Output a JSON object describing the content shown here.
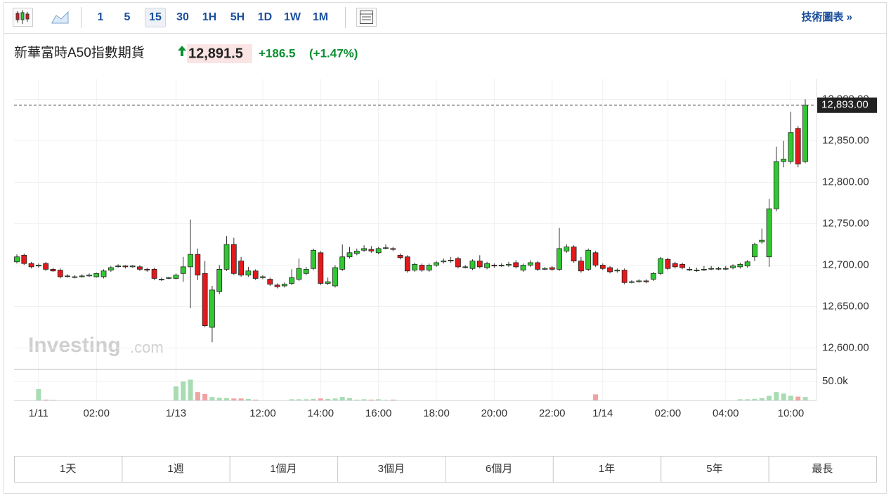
{
  "toolbar": {
    "intervals": [
      "1",
      "5",
      "15",
      "30",
      "1H",
      "5H",
      "1D",
      "1W",
      "1M"
    ],
    "link": "技術圖表 »"
  },
  "quote": {
    "name": "新華富時A50指數期貨",
    "price": "12,891.5",
    "change": "+186.5",
    "change_percent": "(+1.47%)"
  },
  "ranges": [
    "1天",
    "1週",
    "1個月",
    "3個月",
    "6個月",
    "1年",
    "5年",
    "最長"
  ],
  "chart_data": {
    "type": "candlestick",
    "watermark": [
      "Investing",
      ".com"
    ],
    "categories": [
      null,
      null,
      null,
      "1/11",
      null,
      null,
      null,
      null,
      null,
      null,
      null,
      "02:00",
      null,
      null,
      null,
      null,
      null,
      null,
      null,
      null,
      null,
      null,
      "1/13",
      null,
      null,
      null,
      null,
      null,
      null,
      null,
      null,
      null,
      null,
      null,
      "12:00",
      null,
      null,
      null,
      null,
      null,
      null,
      null,
      "14:00",
      null,
      null,
      null,
      null,
      null,
      null,
      null,
      "16:00",
      null,
      null,
      null,
      null,
      null,
      null,
      null,
      "18:00",
      null,
      null,
      null,
      null,
      null,
      null,
      null,
      "20:00",
      null,
      null,
      null,
      null,
      null,
      null,
      null,
      "22:00",
      null,
      null,
      null,
      null,
      null,
      null,
      "1/14",
      null,
      null,
      null,
      null,
      null,
      null,
      null,
      null,
      "02:00",
      null,
      null,
      null,
      null,
      null,
      null,
      null,
      "04:00",
      null,
      null,
      null,
      null,
      null,
      null,
      null,
      null,
      "10:00",
      null,
      null
    ],
    "open": [
      12704,
      12712,
      12702,
      12699,
      12702,
      12695,
      12694,
      12687,
      12686,
      12686,
      12687,
      12686,
      12686,
      12694,
      12699,
      12699,
      12698,
      12698,
      12695,
      12695,
      12683,
      12684,
      12684,
      12690,
      12698,
      12713,
      12690,
      12625,
      12668,
      12695,
      12725,
      12705,
      12688,
      12693,
      12685,
      12683,
      12676,
      12675,
      12678,
      12683,
      12690,
      12696,
      12715,
      12678,
      12675,
      12695,
      12710,
      12714,
      12718,
      12719,
      12715,
      12721,
      12720,
      12712,
      12710,
      12694,
      12700,
      12694,
      12700,
      12704,
      12705,
      12708,
      12698,
      12696,
      12705,
      12697,
      12700,
      12699,
      12700,
      12703,
      12694,
      12700,
      12703,
      12695,
      12697,
      12695,
      12717,
      12722,
      12705,
      12695,
      12715,
      12700,
      12697,
      12693,
      12694,
      12680,
      12680,
      12681,
      12683,
      12690,
      12707,
      12702,
      12701,
      12695,
      12694,
      12695,
      12696,
      12696,
      12696,
      12697,
      12698,
      12699,
      12710,
      12728,
      12710,
      12768,
      12825,
      12825,
      12865,
      12825
    ],
    "high": [
      12713,
      12714,
      12704,
      12702,
      12704,
      12697,
      12696,
      12689,
      12688,
      12689,
      12690,
      12691,
      12695,
      12699,
      12701,
      12700,
      12700,
      12700,
      12697,
      12697,
      12685,
      12686,
      12690,
      12710,
      12755,
      12720,
      12705,
      12675,
      12700,
      12735,
      12733,
      12710,
      12698,
      12695,
      12688,
      12685,
      12678,
      12679,
      12695,
      12708,
      12698,
      12720,
      12717,
      12685,
      12700,
      12725,
      12722,
      12720,
      12724,
      12723,
      12722,
      12725,
      12722,
      12714,
      12712,
      12703,
      12702,
      12702,
      12705,
      12708,
      12710,
      12710,
      12700,
      12707,
      12712,
      12704,
      12702,
      12702,
      12704,
      12706,
      12702,
      12706,
      12705,
      12698,
      12699,
      12745,
      12725,
      12724,
      12710,
      12720,
      12717,
      12702,
      12699,
      12696,
      12696,
      12682,
      12683,
      12683,
      12692,
      12710,
      12709,
      12704,
      12703,
      12698,
      12697,
      12699,
      12699,
      12698,
      12699,
      12701,
      12703,
      12706,
      12727,
      12744,
      12780,
      12843,
      12850,
      12885,
      12868,
      12900
    ],
    "low": [
      12702,
      12700,
      12696,
      12697,
      12693,
      12692,
      12684,
      12685,
      12684,
      12685,
      12686,
      12685,
      12684,
      12692,
      12697,
      12696,
      12697,
      12693,
      12692,
      12682,
      12681,
      12683,
      12683,
      12680,
      12648,
      12682,
      12625,
      12607,
      12665,
      12693,
      12688,
      12686,
      12686,
      12682,
      12683,
      12675,
      12672,
      12673,
      12676,
      12681,
      12688,
      12694,
      12676,
      12676,
      12673,
      12693,
      12708,
      12712,
      12716,
      12715,
      12713,
      12719,
      12717,
      12707,
      12691,
      12692,
      12692,
      12692,
      12698,
      12702,
      12703,
      12696,
      12696,
      12694,
      12696,
      12695,
      12697,
      12698,
      12698,
      12696,
      12692,
      12698,
      12693,
      12694,
      12693,
      12693,
      12715,
      12703,
      12691,
      12693,
      12698,
      12694,
      12690,
      12691,
      12677,
      12678,
      12679,
      12678,
      12681,
      12688,
      12694,
      12696,
      12695,
      12693,
      12692,
      12693,
      12694,
      12694,
      12694,
      12695,
      12696,
      12697,
      12705,
      12726,
      12698,
      12765,
      12818,
      12822,
      12818,
      12823
    ],
    "close": [
      12710,
      12702,
      12698,
      12700,
      12695,
      12693,
      12686,
      12687,
      12686,
      12687,
      12688,
      12690,
      12693,
      12697,
      12699,
      12698,
      12699,
      12695,
      12694,
      12684,
      12683,
      12685,
      12688,
      12698,
      12713,
      12688,
      12627,
      12670,
      12695,
      12725,
      12690,
      12688,
      12693,
      12684,
      12686,
      12677,
      12674,
      12677,
      12685,
      12696,
      12695,
      12718,
      12678,
      12680,
      12697,
      12710,
      12715,
      12717,
      12720,
      12717,
      12720,
      12721,
      12719,
      12709,
      12693,
      12701,
      12694,
      12700,
      12703,
      12705,
      12706,
      12698,
      12698,
      12705,
      12698,
      12702,
      12699,
      12700,
      12701,
      12698,
      12700,
      12703,
      12695,
      12696,
      12695,
      12720,
      12722,
      12705,
      12693,
      12718,
      12700,
      12696,
      12692,
      12694,
      12679,
      12680,
      12681,
      12680,
      12690,
      12708,
      12696,
      12698,
      12697,
      12695,
      12694,
      12695,
      12696,
      12696,
      12696,
      12699,
      12701,
      12704,
      12725,
      12730,
      12768,
      12825,
      12828,
      12860,
      12822,
      12893
    ],
    "volume": [
      0,
      0,
      0,
      30000,
      2000,
      1000,
      0,
      0,
      0,
      0,
      0,
      0,
      0,
      0,
      0,
      0,
      0,
      0,
      0,
      0,
      0,
      0,
      37000,
      50000,
      55000,
      22000,
      17000,
      9000,
      7000,
      6000,
      5000,
      5000,
      4000,
      2000,
      0,
      0,
      0,
      0,
      3000,
      3000,
      3000,
      4000,
      5000,
      4000,
      5000,
      9000,
      6000,
      2000,
      3000,
      2000,
      3000,
      1000,
      2000,
      0,
      0,
      0,
      0,
      0,
      0,
      0,
      0,
      0,
      0,
      0,
      0,
      0,
      0,
      0,
      0,
      0,
      0,
      0,
      0,
      0,
      0,
      0,
      0,
      0,
      0,
      0,
      16000,
      0,
      0,
      0,
      0,
      0,
      0,
      0,
      0,
      0,
      0,
      0,
      0,
      0,
      0,
      0,
      0,
      0,
      0,
      0,
      3000,
      3000,
      4000,
      6000,
      12000,
      22000,
      18000,
      12000,
      10000,
      9000
    ],
    "ylim": [
      12575,
      12925
    ],
    "yticks": [
      {
        "value": 12600,
        "label": "12,600.00"
      },
      {
        "value": 12650,
        "label": "12,650.00"
      },
      {
        "value": 12700,
        "label": "12,700.00"
      },
      {
        "value": 12750,
        "label": "12,750.00"
      },
      {
        "value": 12800,
        "label": "12,800.00"
      },
      {
        "value": 12850,
        "label": "12,850.00"
      },
      {
        "value": 12900,
        "label": "12,900.00"
      }
    ],
    "volume_ylim": [
      0,
      80000
    ],
    "volume_ticks": [
      {
        "value": 50000,
        "label": "50.0k"
      }
    ],
    "last_price": {
      "value": 12893,
      "label": "12,893.00"
    },
    "up_color": "#32c832",
    "down_color": "#e3191b",
    "up_volume_color": "#a8dcb3",
    "down_volume_color": "#f0a3a3",
    "grid": true
  }
}
